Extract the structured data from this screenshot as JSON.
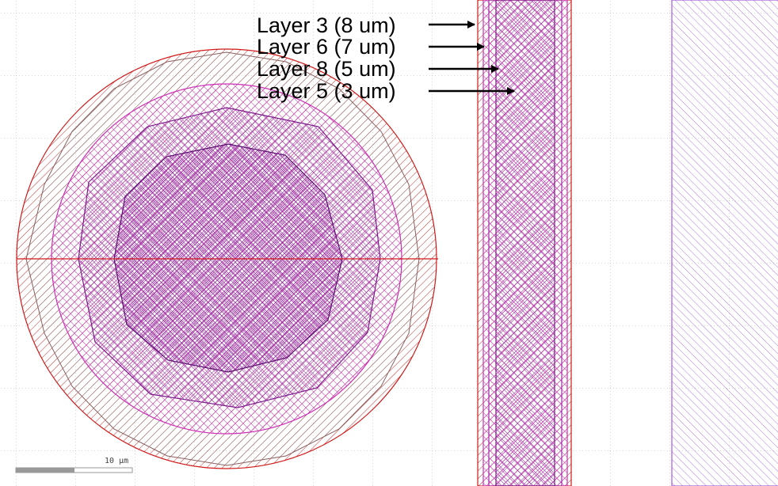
{
  "annotations": [
    {
      "label": "Layer 3 (8 um)"
    },
    {
      "label": "Layer 6 (7 um)"
    },
    {
      "label": "Layer 8 (5 um)"
    },
    {
      "label": "Layer 5 (3 um)"
    }
  ],
  "scale_bar": {
    "label": "10 µm"
  },
  "colors": {
    "background": "#ffffff",
    "grid_dot": "#9a9a9a",
    "layer_red": "#d01818",
    "layer_magenta": "#cc2fb4",
    "layer_purple": "#7b1a8a",
    "layer_violet": "#a45ad8",
    "arrow": "#000000"
  }
}
